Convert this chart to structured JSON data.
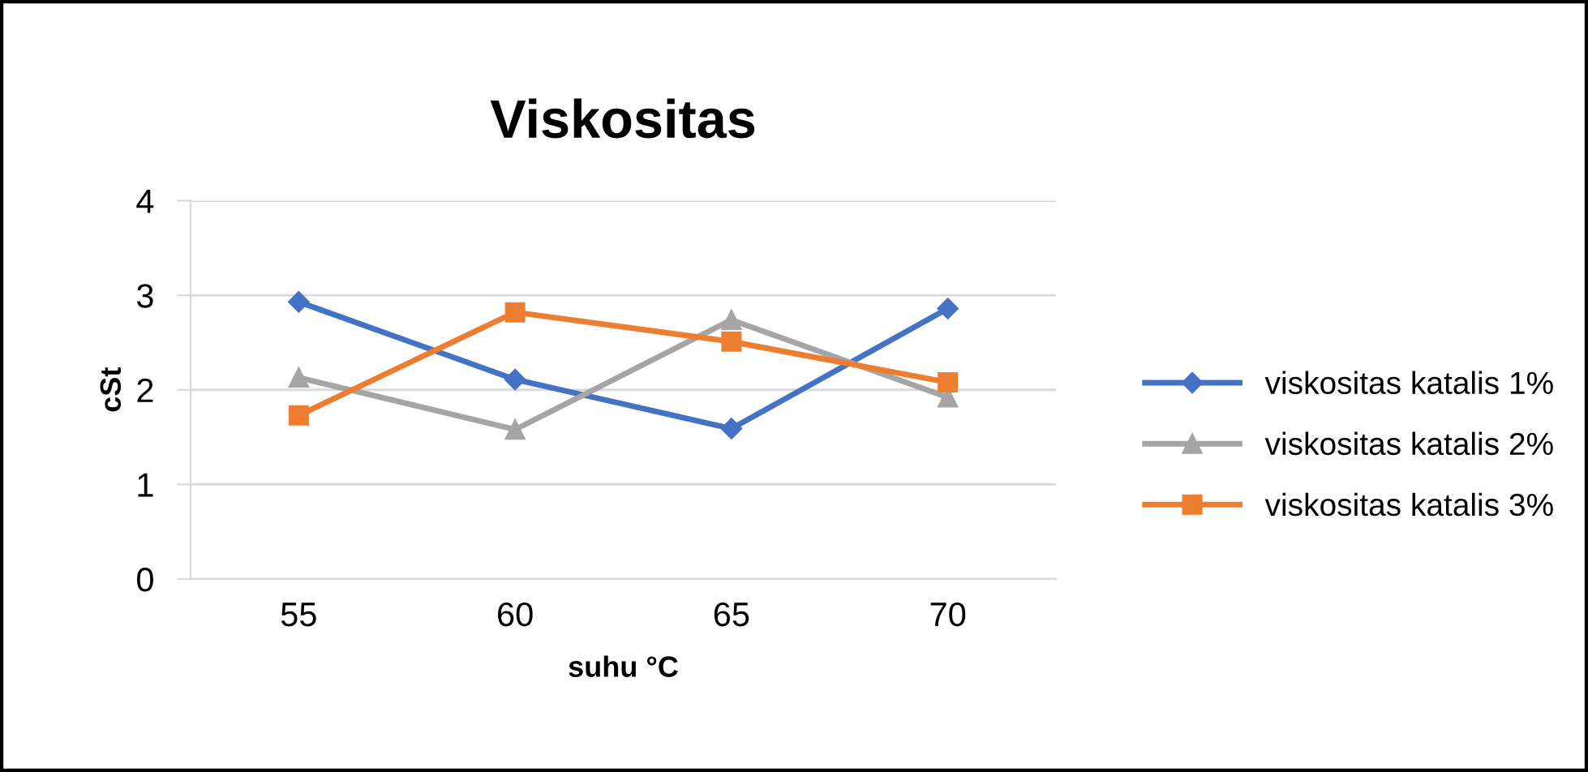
{
  "chart_data": {
    "type": "line",
    "title": "Viskositas",
    "xlabel": "suhu °C",
    "ylabel": "cSt",
    "categories": [
      "55",
      "60",
      "65",
      "70"
    ],
    "series": [
      {
        "name": "viskositas katalis 1%",
        "color": "#4472c4",
        "marker": "diamond",
        "values": [
          2.93,
          2.11,
          1.59,
          2.86
        ]
      },
      {
        "name": "viskositas katalis 2%",
        "color": "#a5a5a5",
        "marker": "triangle",
        "values": [
          2.13,
          1.58,
          2.74,
          1.92
        ]
      },
      {
        "name": "viskositas katalis 3%",
        "color": "#ed7d31",
        "marker": "square",
        "values": [
          1.73,
          2.82,
          2.51,
          2.08
        ]
      }
    ],
    "ylim": [
      0,
      4
    ],
    "yticks": [
      0,
      1,
      2,
      3,
      4
    ],
    "grid": "y",
    "legend": "right",
    "line_style": "solid"
  }
}
